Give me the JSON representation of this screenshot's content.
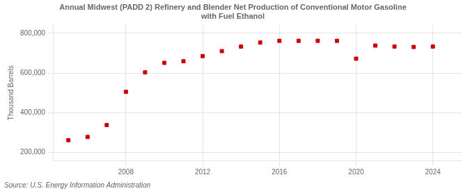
{
  "chart_data": {
    "type": "scatter",
    "title": "Annual Midwest (PADD 2) Refinery and Blender Net Production of Conventional Motor Gasoline\nwith Fuel Ethanol",
    "ylabel": "Thousand Barrels",
    "annotation": "Source: U.S. Energy Information Administration",
    "x": [
      2005,
      2006,
      2007,
      2008,
      2009,
      2010,
      2011,
      2012,
      2013,
      2014,
      2015,
      2016,
      2017,
      2018,
      2019,
      2020,
      2021,
      2022,
      2023,
      2024
    ],
    "values": [
      262000,
      278000,
      338000,
      505000,
      603000,
      651000,
      659000,
      685000,
      710000,
      733000,
      753000,
      762000,
      762000,
      762000,
      762000,
      672000,
      738000,
      733000,
      731000,
      733000
    ],
    "color": "#cc0000",
    "marker": "square",
    "xlim": [
      2004.2,
      2025.5
    ],
    "xticks": [
      2008,
      2012,
      2016,
      2020,
      2024
    ],
    "ylim": [
      160000,
      840000
    ],
    "yticks": [
      {
        "value": 200000,
        "label": "200,000"
      },
      {
        "value": 400000,
        "label": "400,000"
      },
      {
        "value": 600000,
        "label": "600,000"
      },
      {
        "value": 800000,
        "label": "800,000"
      }
    ],
    "grid": true
  }
}
